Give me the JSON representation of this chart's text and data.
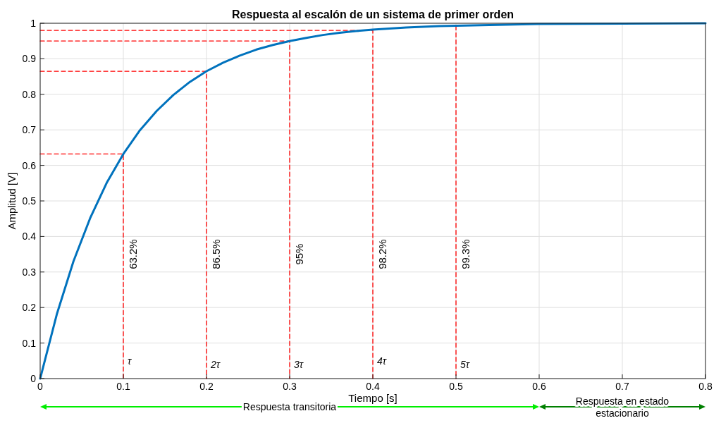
{
  "chart_data": {
    "type": "line",
    "title": "Respuesta al escalón de un sistema de primer orden",
    "xlabel": "Tiempo [s]",
    "ylabel": "Amplitud [V]",
    "xlim": [
      0,
      0.8
    ],
    "ylim": [
      0,
      1
    ],
    "xticks": [
      0,
      0.1,
      0.2,
      0.3,
      0.4,
      0.5,
      0.6,
      0.7,
      0.8
    ],
    "yticks": [
      0,
      0.1,
      0.2,
      0.3,
      0.4,
      0.5,
      0.6,
      0.7,
      0.8,
      0.9,
      1
    ],
    "grid": true,
    "series": [
      {
        "color": "#0072bd",
        "line_style": "solid",
        "x": [
          0,
          0.02,
          0.04,
          0.06,
          0.08,
          0.1,
          0.12,
          0.14,
          0.16,
          0.18,
          0.2,
          0.22,
          0.24,
          0.26,
          0.28,
          0.3,
          0.32,
          0.34,
          0.36,
          0.38,
          0.4,
          0.44,
          0.48,
          0.52,
          0.56,
          0.6,
          0.7,
          0.8
        ],
        "values": [
          0,
          0.181,
          0.33,
          0.451,
          0.551,
          0.632,
          0.699,
          0.753,
          0.798,
          0.835,
          0.865,
          0.889,
          0.909,
          0.926,
          0.939,
          0.95,
          0.959,
          0.967,
          0.973,
          0.978,
          0.982,
          0.988,
          0.992,
          0.994,
          0.996,
          0.998,
          0.999,
          1
        ]
      },
      {
        "color": "#ff0000",
        "line_style": "dashed",
        "x": [
          0,
          0.1,
          0.1
        ],
        "values": [
          0.632,
          0.632,
          0
        ]
      },
      {
        "color": "#ff0000",
        "line_style": "dashed",
        "x": [
          0,
          0.2,
          0.2
        ],
        "values": [
          0.865,
          0.865,
          0
        ]
      },
      {
        "color": "#ff0000",
        "line_style": "dashed",
        "x": [
          0,
          0.3,
          0.3
        ],
        "values": [
          0.95,
          0.95,
          0
        ]
      },
      {
        "color": "#ff0000",
        "line_style": "dashed",
        "x": [
          0,
          0.4,
          0.4
        ],
        "values": [
          0.98,
          0.98,
          0
        ]
      },
      {
        "color": "#ff0000",
        "line_style": "dashed",
        "x": [
          0.5,
          0.5
        ],
        "values": [
          0.993,
          0
        ]
      }
    ],
    "annotations": [
      {
        "text": "63.2%",
        "x": 0.1,
        "y": 0.35
      },
      {
        "text": "86.5%",
        "x": 0.2,
        "y": 0.35
      },
      {
        "text": "95%",
        "x": 0.3,
        "y": 0.35
      },
      {
        "text": "98.2%",
        "x": 0.4,
        "y": 0.35
      },
      {
        "text": "99.3%",
        "x": 0.5,
        "y": 0.35
      },
      {
        "text": "τ",
        "x": 0.1,
        "y": 0.04
      },
      {
        "text": "2τ",
        "x": 0.2,
        "y": 0.03
      },
      {
        "text": "3τ",
        "x": 0.3,
        "y": 0.03
      },
      {
        "text": "4τ",
        "x": 0.4,
        "y": 0.04
      },
      {
        "text": "5τ",
        "x": 0.5,
        "y": 0.03
      },
      "Respuesta transitoria",
      "Respuesta en estado estacionario"
    ]
  }
}
